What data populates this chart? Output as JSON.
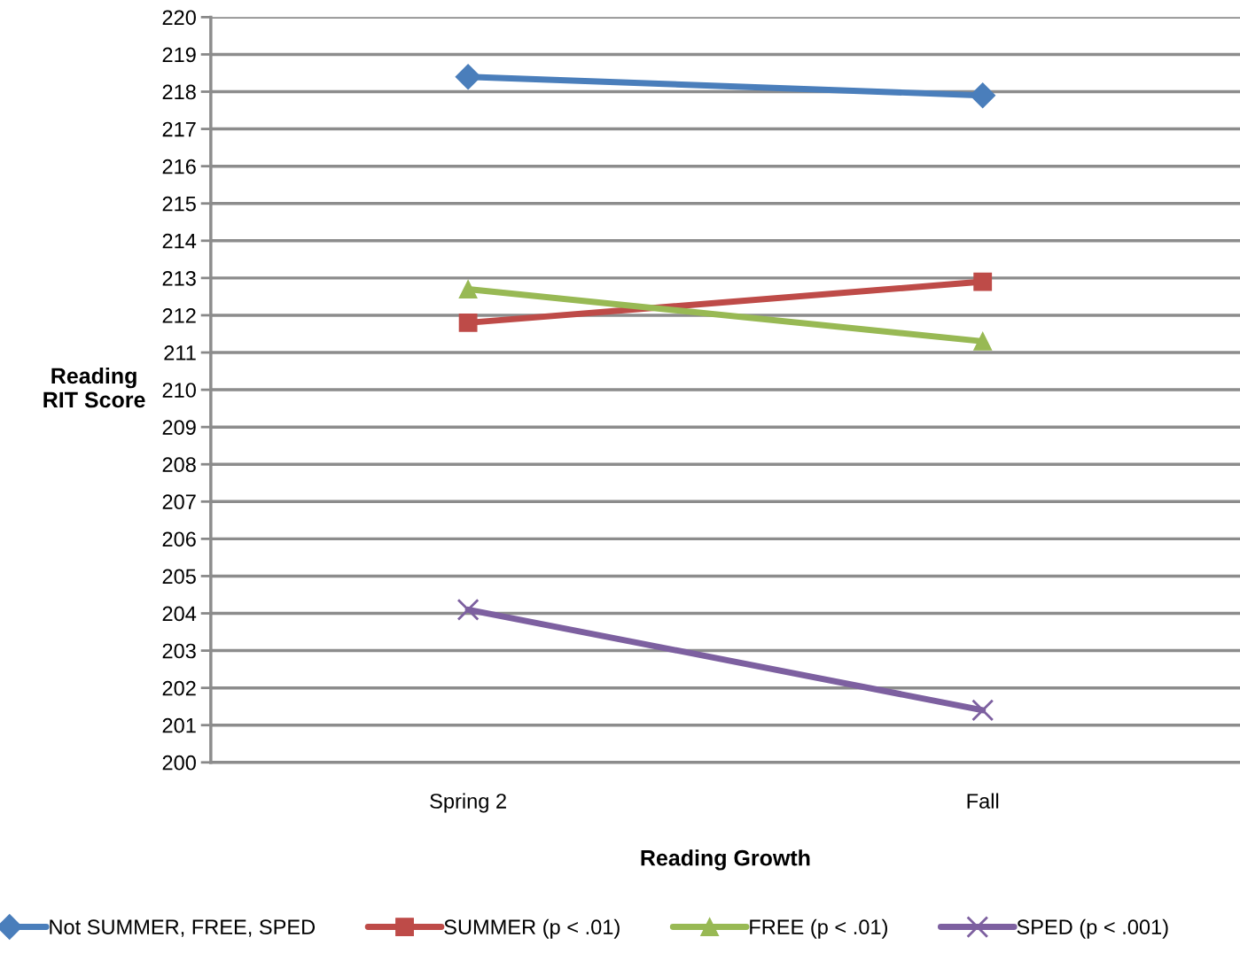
{
  "chart_data": {
    "type": "line",
    "xlabel": "Reading Growth",
    "ylabel": "Reading\nRIT Score",
    "categories": [
      "Spring 2",
      "Fall"
    ],
    "series": [
      {
        "name": "Not SUMMER, FREE, SPED",
        "color": "#4a7ebb",
        "marker": "diamond",
        "values": [
          218.4,
          217.9
        ]
      },
      {
        "name": "SUMMER (p < .01)",
        "color": "#be4b48",
        "marker": "square",
        "values": [
          211.8,
          212.9
        ]
      },
      {
        "name": "FREE (p < .01)",
        "color": "#98b954",
        "marker": "triangle",
        "values": [
          212.7,
          211.3
        ]
      },
      {
        "name": "SPED (p < .001)",
        "color": "#7d60a0",
        "marker": "cross",
        "values": [
          204.1,
          201.4
        ]
      }
    ],
    "ylim": [
      200,
      220
    ],
    "yticks": [
      200,
      201,
      202,
      203,
      204,
      205,
      206,
      207,
      208,
      209,
      210,
      211,
      212,
      213,
      214,
      215,
      216,
      217,
      218,
      219,
      220
    ],
    "grid": "y",
    "legend": "bottom",
    "line_style": "solid"
  }
}
